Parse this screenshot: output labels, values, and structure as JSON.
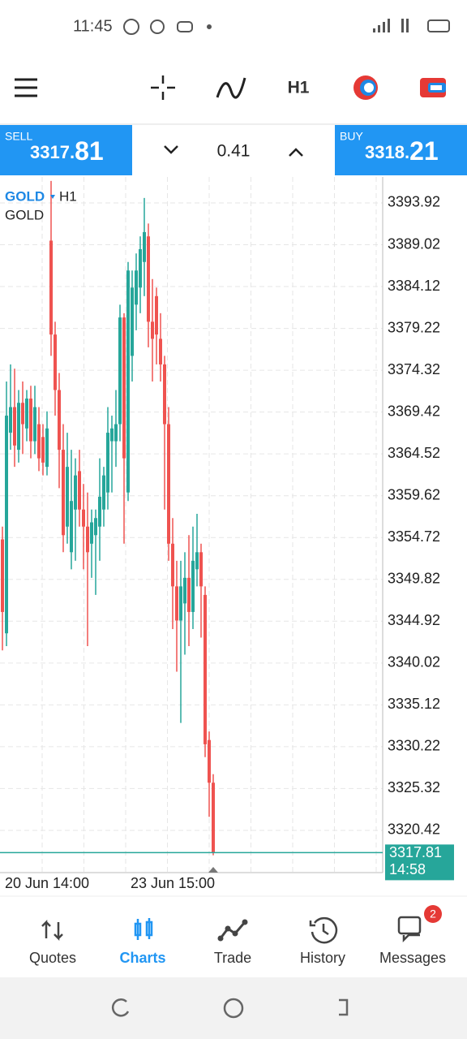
{
  "status_bar": {
    "time": "11:45"
  },
  "toolbar": {
    "timeframe": "H1"
  },
  "trade_panel": {
    "sell": {
      "label": "SELL",
      "price_main": "3317.",
      "price_big": "81"
    },
    "spread": "0.41",
    "buy": {
      "label": "BUY",
      "price_main": "3318.",
      "price_big": "21"
    }
  },
  "chart_data": {
    "type": "candlestick",
    "symbol": "GOLD",
    "timeframe": "H1",
    "description": "GOLD",
    "categories": [
      null,
      null,
      null,
      null,
      null,
      null,
      null,
      null,
      null,
      null,
      null,
      "20 Jun 14:00",
      null,
      null,
      null,
      null,
      null,
      null,
      null,
      null,
      null,
      null,
      null,
      null,
      null,
      null,
      null,
      null,
      null,
      null,
      null,
      null,
      null,
      null,
      null,
      null,
      null,
      null,
      null,
      null,
      null,
      null,
      "23 Jun 15:00",
      null,
      null,
      null,
      null,
      null,
      null,
      null,
      null,
      null,
      null
    ],
    "open": [
      3354.5,
      3343.5,
      3367,
      3370,
      3365,
      3370.5,
      3367.5,
      3371,
      3366,
      3368,
      3366.5,
      3363,
      3389.5,
      3378.5,
      3372,
      3365,
      3356,
      3353,
      3358,
      3362.5,
      3358,
      3356,
      3354,
      3355,
      3356,
      3358,
      3360,
      3366,
      3366,
      3368,
      3380.5,
      3360,
      3376,
      3382,
      3384,
      3387,
      3390,
      3380,
      3383,
      3378,
      3375,
      3368,
      3354,
      3349,
      3345,
      3347,
      3350,
      3346,
      3351,
      3353,
      3348,
      3331,
      3326
    ],
    "high": [
      3356,
      3373,
      3375,
      3374.5,
      3372,
      3373,
      3372,
      3372.5,
      3372.5,
      3370,
      3368,
      3369.5,
      3396.5,
      3380,
      3374,
      3368,
      3367,
      3365,
      3364,
      3365,
      3361,
      3360,
      3358,
      3358,
      3364,
      3363,
      3370,
      3369,
      3372,
      3382,
      3381,
      3387,
      3386,
      3388,
      3390,
      3394.5,
      3391.5,
      3385,
      3384,
      3381,
      3376,
      3370,
      3357,
      3352,
      3352,
      3353,
      3355,
      3356,
      3357.5,
      3354,
      3349,
      3332,
      3327
    ],
    "low": [
      3341.5,
      3342,
      3365,
      3363,
      3363.5,
      3364.5,
      3366,
      3364,
      3364.5,
      3362.5,
      3362,
      3362,
      3376,
      3369,
      3360.5,
      3353,
      3354,
      3351,
      3352,
      3356,
      3351,
      3342,
      3350,
      3348,
      3352,
      3356,
      3358,
      3360,
      3363,
      3366,
      3354,
      3359,
      3373,
      3379,
      3381,
      3383,
      3377,
      3373,
      3375,
      3373,
      3358,
      3352,
      3344,
      3339,
      3333,
      3341,
      3342,
      3344,
      3349,
      3343,
      3329,
      3322,
      3317.5
    ],
    "close": [
      3346,
      3369,
      3370,
      3365.5,
      3370.5,
      3368,
      3371,
      3366,
      3370,
      3364,
      3363.5,
      3367.5,
      3378.5,
      3372,
      3365,
      3355,
      3363,
      3359,
      3362,
      3358,
      3356,
      3353,
      3356.5,
      3357,
      3359.5,
      3362,
      3367,
      3367.5,
      3368,
      3380.5,
      3364,
      3386,
      3384,
      3386,
      3388.5,
      3390.5,
      3380,
      3378,
      3378.5,
      3375,
      3368,
      3354,
      3349,
      3345,
      3349,
      3350,
      3346,
      3352,
      3353,
      3349,
      3330.5,
      3326,
      3317.81
    ],
    "up_color": "#26a69a",
    "down_color": "#ef5350",
    "ylim": [
      3315.47,
      3396.96
    ],
    "yticks": [
      3393.92,
      3389.02,
      3384.12,
      3379.22,
      3374.32,
      3369.42,
      3364.52,
      3359.62,
      3354.72,
      3349.82,
      3344.92,
      3340.02,
      3335.12,
      3330.22,
      3325.32,
      3320.42
    ],
    "grid": true,
    "current_price": 3317.81,
    "countdown": "14:58"
  },
  "bottom_nav": {
    "items": [
      "Quotes",
      "Charts",
      "Trade",
      "History",
      "Messages"
    ],
    "badge": "2"
  }
}
